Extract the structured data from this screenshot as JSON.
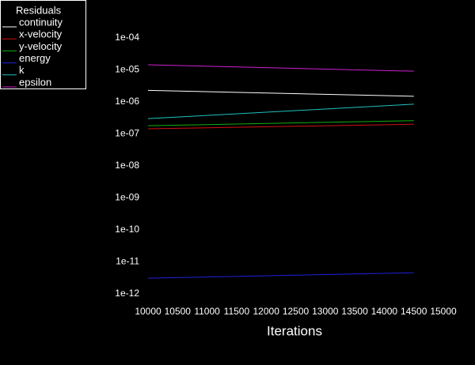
{
  "chart_data": {
    "type": "line",
    "xlabel": "Iterations",
    "legend_title": "Residuals",
    "legend": "upper left",
    "yscale": "log",
    "x": [
      10000,
      14500
    ],
    "xlim": [
      10000,
      15000
    ],
    "xticks": [
      10000,
      10500,
      11000,
      11500,
      12000,
      12500,
      13000,
      13500,
      14000,
      14500,
      15000
    ],
    "ylim": [
      1e-12,
      0.0001
    ],
    "yticks": [
      {
        "value": 1e-12,
        "label": "1e-12"
      },
      {
        "value": 1e-11,
        "label": "1e-11"
      },
      {
        "value": 1e-10,
        "label": "1e-10"
      },
      {
        "value": 1e-09,
        "label": "1e-09"
      },
      {
        "value": 1e-08,
        "label": "1e-08"
      },
      {
        "value": 1e-07,
        "label": "1e-07"
      },
      {
        "value": 1e-06,
        "label": "1e-06"
      },
      {
        "value": 1e-05,
        "label": "1e-05"
      },
      {
        "value": 0.0001,
        "label": "1e-04"
      }
    ],
    "series": [
      {
        "name": "continuity",
        "color": "#ffffff",
        "values": [
          2.3e-06,
          1.5e-06
        ]
      },
      {
        "name": "x-velocity",
        "color": "#d01010",
        "values": [
          1.45e-07,
          2e-07
        ]
      },
      {
        "name": "y-velocity",
        "color": "#10b010",
        "values": [
          1.8e-07,
          2.6e-07
        ]
      },
      {
        "name": "energy",
        "color": "#2020e0",
        "values": [
          3.1e-12,
          4.6e-12
        ]
      },
      {
        "name": "k",
        "color": "#20c0c0",
        "values": [
          3e-07,
          8.5e-07
        ]
      },
      {
        "name": "epsilon",
        "color": "#d020d0",
        "values": [
          1.45e-05,
          9.1e-06
        ]
      }
    ]
  }
}
